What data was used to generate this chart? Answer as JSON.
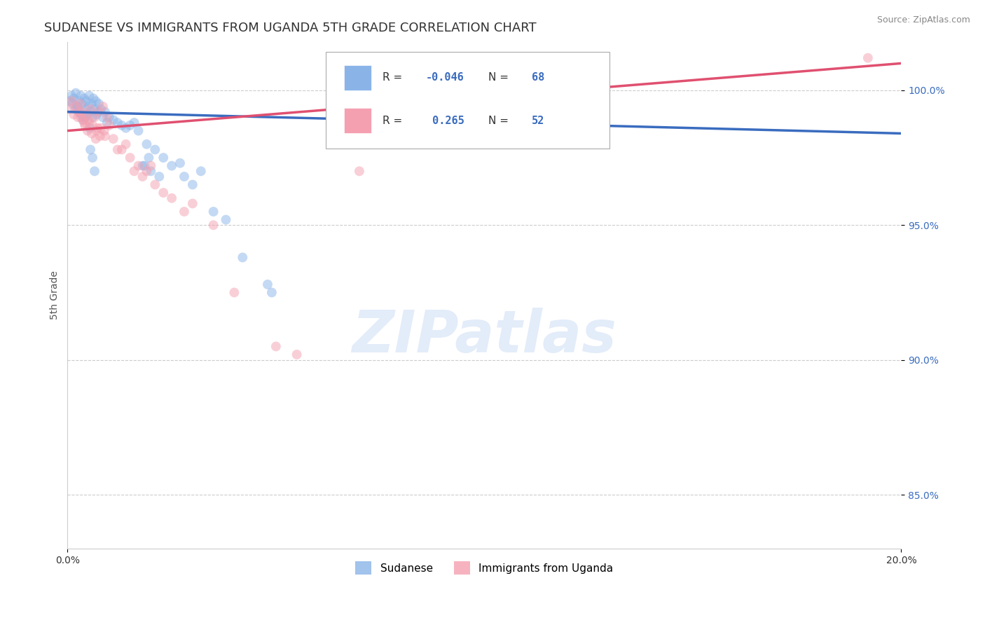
{
  "title": "SUDANESE VS IMMIGRANTS FROM UGANDA 5TH GRADE CORRELATION CHART",
  "source": "Source: ZipAtlas.com",
  "ylabel": "5th Grade",
  "x_range": [
    0.0,
    20.0
  ],
  "y_range": [
    83.0,
    101.8
  ],
  "y_ticks": [
    85.0,
    90.0,
    95.0,
    100.0
  ],
  "legend_entries": [
    {
      "label": "Sudanese",
      "color": "#8ab4e8",
      "R": -0.046,
      "N": 68
    },
    {
      "label": "Immigrants from Uganda",
      "color": "#f4a0b0",
      "R": 0.265,
      "N": 52
    }
  ],
  "blue_scatter_x": [
    0.05,
    0.1,
    0.12,
    0.15,
    0.18,
    0.2,
    0.25,
    0.28,
    0.3,
    0.32,
    0.35,
    0.38,
    0.4,
    0.42,
    0.45,
    0.48,
    0.5,
    0.52,
    0.55,
    0.58,
    0.6,
    0.62,
    0.65,
    0.68,
    0.7,
    0.75,
    0.8,
    0.85,
    0.9,
    0.95,
    1.0,
    1.1,
    1.2,
    1.3,
    1.4,
    1.5,
    1.6,
    1.8,
    2.0,
    2.2,
    2.5,
    2.8,
    3.0,
    3.5,
    3.8,
    4.2,
    4.8,
    4.9,
    1.7,
    0.55,
    0.6,
    0.65,
    1.9,
    2.1,
    2.3,
    8.5,
    8.8,
    2.7,
    3.2,
    1.85,
    1.95,
    0.22,
    0.27,
    0.33,
    0.37,
    0.43,
    0.53,
    0.72
  ],
  "blue_scatter_y": [
    99.6,
    99.8,
    99.5,
    99.7,
    99.3,
    99.9,
    99.4,
    99.6,
    99.2,
    99.8,
    99.5,
    99.0,
    99.7,
    99.3,
    99.6,
    99.1,
    99.4,
    99.8,
    99.2,
    99.5,
    99.0,
    99.7,
    99.3,
    99.6,
    99.1,
    99.5,
    99.3,
    99.0,
    99.2,
    98.8,
    99.0,
    98.9,
    98.8,
    98.7,
    98.6,
    98.7,
    98.8,
    97.2,
    97.0,
    96.8,
    97.2,
    96.8,
    96.5,
    95.5,
    95.2,
    93.8,
    92.8,
    92.5,
    98.5,
    97.8,
    97.5,
    97.0,
    98.0,
    97.8,
    97.5,
    99.3,
    99.5,
    97.3,
    97.0,
    97.2,
    97.5,
    99.4,
    99.2,
    99.1,
    98.9,
    99.0,
    98.6,
    99.2
  ],
  "pink_scatter_x": [
    0.05,
    0.1,
    0.15,
    0.2,
    0.25,
    0.3,
    0.35,
    0.4,
    0.45,
    0.5,
    0.55,
    0.6,
    0.65,
    0.7,
    0.75,
    0.8,
    0.85,
    0.9,
    0.95,
    1.0,
    1.1,
    1.2,
    1.4,
    1.5,
    1.7,
    1.9,
    2.1,
    2.3,
    2.5,
    3.0,
    3.5,
    4.0,
    0.28,
    0.32,
    0.38,
    0.42,
    0.48,
    0.52,
    0.58,
    0.68,
    0.72,
    0.78,
    0.88,
    1.3,
    2.0,
    1.8,
    1.6,
    2.8,
    5.0,
    19.2,
    5.5,
    7.0
  ],
  "pink_scatter_y": [
    99.3,
    99.6,
    99.1,
    99.4,
    99.0,
    99.5,
    99.2,
    98.8,
    99.1,
    98.9,
    99.3,
    98.7,
    99.0,
    98.5,
    99.2,
    98.6,
    99.4,
    98.3,
    99.0,
    98.7,
    98.2,
    97.8,
    98.0,
    97.5,
    97.2,
    97.0,
    96.5,
    96.2,
    96.0,
    95.8,
    95.0,
    92.5,
    99.2,
    99.0,
    98.9,
    98.7,
    98.5,
    98.8,
    98.4,
    98.2,
    98.6,
    98.3,
    98.5,
    97.8,
    97.2,
    96.8,
    97.0,
    95.5,
    90.5,
    101.2,
    90.2,
    97.0
  ],
  "blue_line_x": [
    0.0,
    20.0
  ],
  "blue_line_y": [
    99.2,
    98.4
  ],
  "pink_line_x": [
    0.0,
    20.0
  ],
  "pink_line_y": [
    98.5,
    101.0
  ],
  "watermark_text": "ZIPatlas",
  "scatter_size": 100,
  "scatter_alpha": 0.5,
  "blue_color": "#8ab4e8",
  "pink_color": "#f4a0b0",
  "blue_line_color": "#3a6cbf",
  "pink_line_color": "#e05070",
  "grid_color": "#cccccc",
  "background_color": "#ffffff",
  "title_fontsize": 13,
  "axis_label_fontsize": 10,
  "tick_fontsize": 10,
  "legend_R_color": "#3a6cbf",
  "watermark_color": "#ccddf5",
  "watermark_alpha": 0.55
}
